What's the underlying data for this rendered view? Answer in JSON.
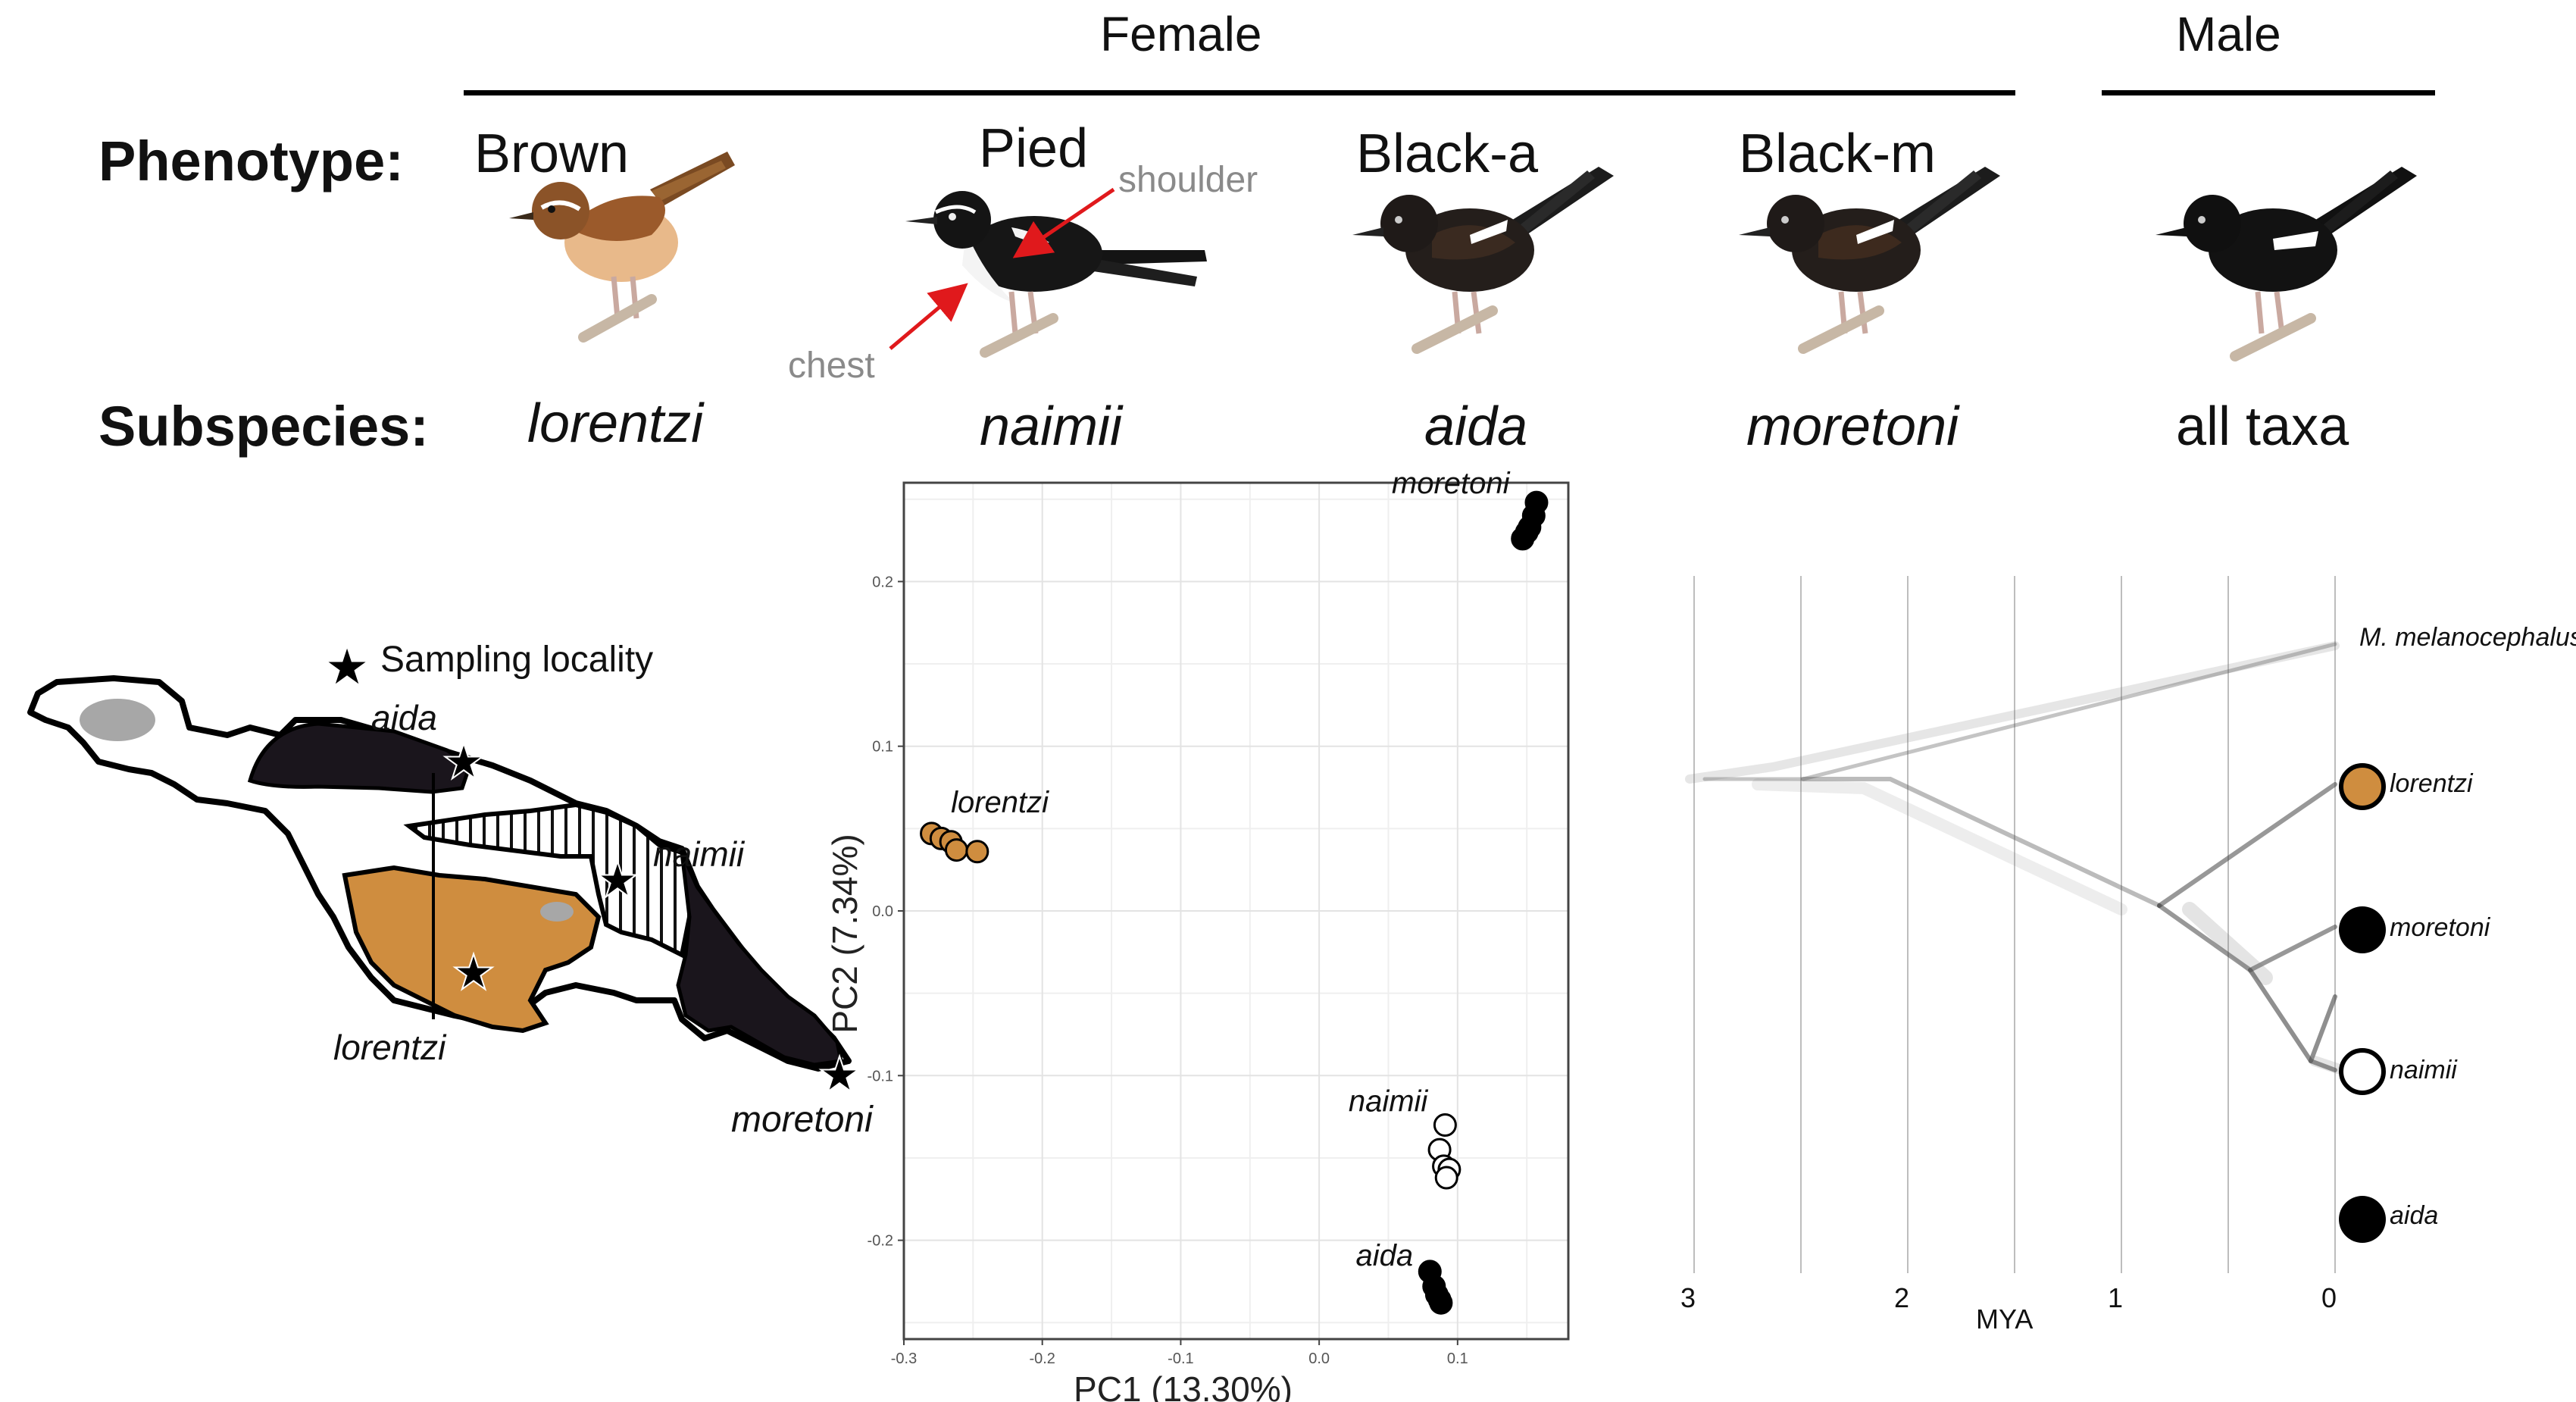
{
  "header": {
    "female": "Female",
    "male": "Male"
  },
  "row_labels": {
    "phenotype": "Phenotype:",
    "subspecies": "Subspecies:"
  },
  "phenotypes": [
    {
      "name": "Brown",
      "subspecies": "lorentzi",
      "plumage": "brown"
    },
    {
      "name": "Pied",
      "subspecies": "naimii",
      "plumage": "pied"
    },
    {
      "name": "Black-a",
      "subspecies": "aida",
      "plumage": "black"
    },
    {
      "name": "Black-m",
      "subspecies": "moretoni",
      "plumage": "black"
    },
    {
      "name": "",
      "subspecies": "all taxa",
      "plumage": "black-male"
    }
  ],
  "annotations": {
    "shoulder": "shoulder",
    "chest": "chest",
    "arrow_color": "#e0191c"
  },
  "map": {
    "legend": "Sampling locality",
    "regions": [
      {
        "name": "aida",
        "fill": "#1a151c"
      },
      {
        "name": "naimii",
        "fill": "hatched"
      },
      {
        "name": "lorentzi",
        "fill": "#cf8d3f"
      },
      {
        "name": "moretoni",
        "fill": "#1a151c"
      }
    ]
  },
  "chart_data": {
    "type": "scatter",
    "xlabel": "PC1 (13.30%)",
    "ylabel": "PC2 (7.34%)",
    "xlim": [
      -0.3,
      0.18
    ],
    "ylim": [
      -0.26,
      0.26
    ],
    "xticks": [
      -0.3,
      -0.2,
      -0.1,
      0.0,
      0.1
    ],
    "yticks": [
      -0.2,
      -0.1,
      0.0,
      0.1,
      0.2
    ],
    "grid": true,
    "series": [
      {
        "name": "moretoni",
        "color": "#000000",
        "filled": true,
        "points": [
          [
            0.157,
            0.248
          ],
          [
            0.155,
            0.24
          ],
          [
            0.152,
            0.233
          ],
          [
            0.15,
            0.23
          ],
          [
            0.147,
            0.226
          ]
        ]
      },
      {
        "name": "lorentzi",
        "color": "#cf8d3f",
        "filled": true,
        "points": [
          [
            -0.28,
            0.047
          ],
          [
            -0.273,
            0.044
          ],
          [
            -0.266,
            0.042
          ],
          [
            -0.262,
            0.037
          ],
          [
            -0.247,
            0.036
          ]
        ]
      },
      {
        "name": "naimii",
        "color": "#000000",
        "filled": false,
        "points": [
          [
            0.091,
            -0.13
          ],
          [
            0.087,
            -0.145
          ],
          [
            0.09,
            -0.155
          ],
          [
            0.094,
            -0.157
          ],
          [
            0.092,
            -0.162
          ]
        ]
      },
      {
        "name": "aida",
        "color": "#000000",
        "filled": true,
        "points": [
          [
            0.08,
            -0.219
          ],
          [
            0.083,
            -0.228
          ],
          [
            0.085,
            -0.233
          ],
          [
            0.087,
            -0.236
          ],
          [
            0.088,
            -0.238
          ]
        ]
      }
    ]
  },
  "tree": {
    "axis_label": "MYA",
    "ticks": [
      "3",
      "2",
      "1",
      "0"
    ],
    "tips": [
      {
        "name": "M. melanocephalus",
        "marker": "none"
      },
      {
        "name": "lorentzi",
        "marker": "#cf8d3f"
      },
      {
        "name": "moretoni",
        "marker": "#000000"
      },
      {
        "name": "naimii",
        "marker": "#ffffff"
      },
      {
        "name": "aida",
        "marker": "#000000"
      }
    ]
  }
}
